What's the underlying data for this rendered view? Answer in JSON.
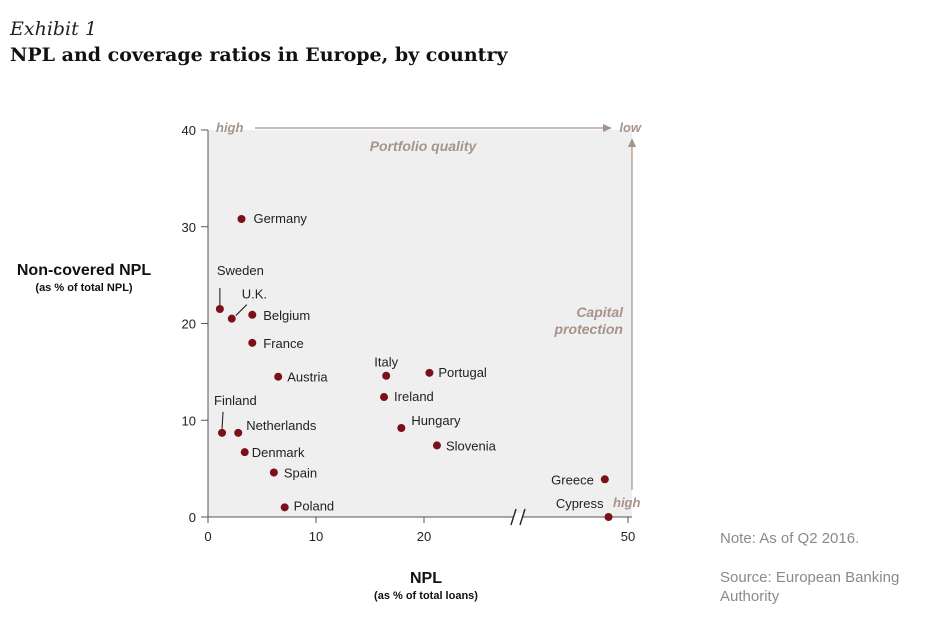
{
  "exhibit_label": "Exhibit 1",
  "title": "NPL and coverage ratios in Europe, by country",
  "note": "Note: As of Q2 2016.",
  "source": "Source: European Banking Authority",
  "colors": {
    "plot_bg": "#efefef",
    "marker": "#7a1018",
    "annotation": "#a6948a",
    "axis": "#555555"
  },
  "chart_data": {
    "type": "scatter",
    "xlabel": "NPL",
    "xlabel_sub": "(as % of total loans)",
    "ylabel": "Non-covered NPL",
    "ylabel_sub": "(as % of total NPL)",
    "xlim": [
      0,
      50
    ],
    "ylim": [
      0,
      40
    ],
    "x_axis_break": true,
    "x_ticks": [
      0,
      10,
      20,
      50
    ],
    "y_ticks": [
      0,
      10,
      20,
      30,
      40
    ],
    "grid": false,
    "annotations": {
      "quality_high": "high",
      "quality_low": "low",
      "quality_label": "Portfolio quality",
      "capital_label": "Capital protection",
      "capital_high": "high"
    },
    "points": [
      {
        "label": "Germany",
        "x": 3.1,
        "y": 30.8
      },
      {
        "label": "Sweden",
        "x": 1.1,
        "y": 21.5
      },
      {
        "label": "U.K.",
        "x": 2.2,
        "y": 20.5
      },
      {
        "label": "Belgium",
        "x": 4.1,
        "y": 20.9
      },
      {
        "label": "France",
        "x": 4.1,
        "y": 18.0
      },
      {
        "label": "Austria",
        "x": 6.5,
        "y": 14.5
      },
      {
        "label": "Italy",
        "x": 16.5,
        "y": 14.6
      },
      {
        "label": "Portugal",
        "x": 20.5,
        "y": 14.9
      },
      {
        "label": "Ireland",
        "x": 16.3,
        "y": 12.4
      },
      {
        "label": "Hungary",
        "x": 17.9,
        "y": 9.2
      },
      {
        "label": "Slovenia",
        "x": 21.2,
        "y": 7.4
      },
      {
        "label": "Finland",
        "x": 1.3,
        "y": 8.7
      },
      {
        "label": "Netherlands",
        "x": 2.8,
        "y": 8.7
      },
      {
        "label": "Denmark",
        "x": 3.4,
        "y": 6.7
      },
      {
        "label": "Spain",
        "x": 6.1,
        "y": 4.6
      },
      {
        "label": "Poland",
        "x": 7.1,
        "y": 1.0
      },
      {
        "label": "Greece",
        "x": 45.6,
        "y": 3.9
      },
      {
        "label": "Cypress",
        "x": 46.3,
        "y": 0.0
      }
    ]
  }
}
